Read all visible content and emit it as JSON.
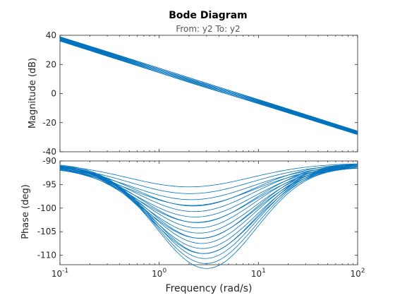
{
  "chart_data": {
    "type": "line",
    "title": "Bode Diagram",
    "subtitle": "From: y2  To: y2",
    "xlabel": "Frequency  (rad/s)",
    "x_scale": "log",
    "xlim": [
      0.1,
      100
    ],
    "x_ticks": [
      {
        "value": 0.1,
        "base": "10",
        "exp": "-1"
      },
      {
        "value": 1,
        "base": "10",
        "exp": "0"
      },
      {
        "value": 10,
        "base": "10",
        "exp": "1"
      },
      {
        "value": 100,
        "base": "10",
        "exp": "2"
      }
    ],
    "line_color": "#0072BD",
    "grid": false,
    "panels": [
      {
        "ylabel": "Magnitude (dB)",
        "ylim": [
          -40,
          40
        ],
        "yticks": [
          40,
          20,
          0,
          -20,
          -40
        ],
        "series_description_values": {
          "x": [
            0.1,
            1,
            10,
            100
          ],
          "y_range_at_x": [
            [
              35,
              38
            ],
            [
              15,
              17
            ],
            [
              -7,
              -5
            ],
            [
              -28,
              -26
            ]
          ]
        }
      },
      {
        "ylabel": "Phase (deg)",
        "ylim": [
          -112,
          -90
        ],
        "yticks": [
          -90,
          -95,
          -100,
          -105,
          -110
        ],
        "series_description_values": {
          "x_min_phase_range": [
            2,
            3
          ],
          "min_phase_range": [
            -111.5,
            -95
          ],
          "phase_at_0_1": [
            -91.5,
            -90.5
          ],
          "phase_at_100": [
            -91,
            -90.2
          ]
        }
      }
    ]
  }
}
